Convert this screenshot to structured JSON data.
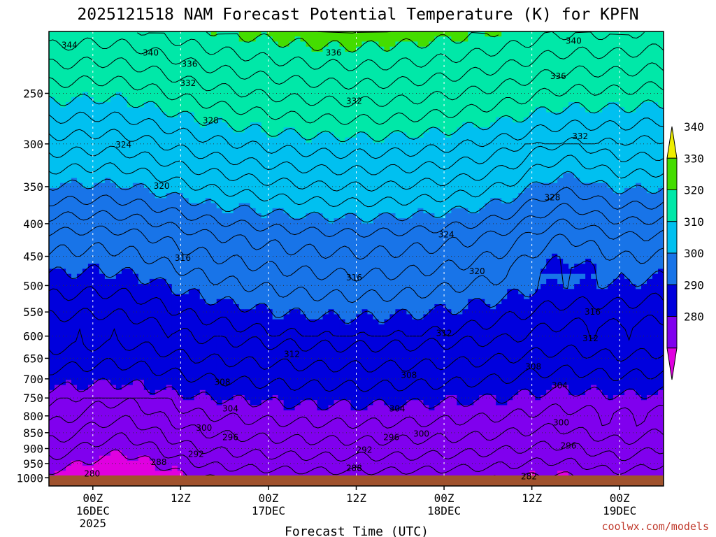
{
  "chart_data": {
    "type": "heatmap",
    "title": "2025121518 NAM Forecast Potential Temperature (K) for KPFN",
    "xlabel": "Forecast Time (UTC)",
    "ylabel": "",
    "y_ticks": [
      "250",
      "300",
      "350",
      "400",
      "450",
      "500",
      "550",
      "600",
      "650",
      "700",
      "750",
      "800",
      "850",
      "900",
      "950",
      "1000"
    ],
    "y_axis_scale": "log-pressure (hPa), inverted",
    "y_range_hpa": [
      200,
      1030
    ],
    "x_ticks": [
      {
        "hour": 6,
        "line1": "00Z",
        "line2": "16DEC",
        "line3": "2025"
      },
      {
        "hour": 18,
        "line1": "12Z",
        "line2": "",
        "line3": ""
      },
      {
        "hour": 30,
        "line1": "00Z",
        "line2": "17DEC",
        "line3": ""
      },
      {
        "hour": 42,
        "line1": "12Z",
        "line2": "",
        "line3": ""
      },
      {
        "hour": 54,
        "line1": "00Z",
        "line2": "18DEC",
        "line3": ""
      },
      {
        "hour": 66,
        "line1": "12Z",
        "line2": "",
        "line3": ""
      },
      {
        "hour": 78,
        "line1": "00Z",
        "line2": "19DEC",
        "line3": ""
      }
    ],
    "x_range_hours": [
      0,
      84
    ],
    "colorbar": {
      "ticks": [
        "280",
        "290",
        "300",
        "310",
        "320",
        "330",
        "340"
      ],
      "bands": [
        {
          "min": 270,
          "max": 280,
          "color": "#e000e0"
        },
        {
          "min": 280,
          "max": 290,
          "color": "#8000ee"
        },
        {
          "min": 290,
          "max": 300,
          "color": "#0000dd"
        },
        {
          "min": 300,
          "max": 310,
          "color": "#1874e8"
        },
        {
          "min": 310,
          "max": 320,
          "color": "#00c0f0"
        },
        {
          "min": 320,
          "max": 330,
          "color": "#00e8a8"
        },
        {
          "min": 330,
          "max": 340,
          "color": "#44dd00"
        },
        {
          "min": 340,
          "max": 350,
          "color": "#eeee00"
        }
      ]
    },
    "contour_interval_k": 2,
    "contour_labels": [
      {
        "text": "344",
        "hour": 2.8,
        "p": 210
      },
      {
        "text": "340",
        "hour": 13.9,
        "p": 216
      },
      {
        "text": "336",
        "hour": 19.2,
        "p": 225
      },
      {
        "text": "332",
        "hour": 19.0,
        "p": 241
      },
      {
        "text": "328",
        "hour": 22.1,
        "p": 276
      },
      {
        "text": "324",
        "hour": 10.2,
        "p": 301
      },
      {
        "text": "320",
        "hour": 15.4,
        "p": 349
      },
      {
        "text": "316",
        "hour": 18.3,
        "p": 453
      },
      {
        "text": "312",
        "hour": 33.2,
        "p": 640
      },
      {
        "text": "308",
        "hour": 23.7,
        "p": 708
      },
      {
        "text": "304",
        "hour": 24.8,
        "p": 780
      },
      {
        "text": "300",
        "hour": 21.2,
        "p": 836
      },
      {
        "text": "296",
        "hour": 24.8,
        "p": 864
      },
      {
        "text": "292",
        "hour": 20.1,
        "p": 918
      },
      {
        "text": "288",
        "hour": 15.0,
        "p": 945
      },
      {
        "text": "280",
        "hour": 5.9,
        "p": 985
      },
      {
        "text": "336",
        "hour": 38.9,
        "p": 216
      },
      {
        "text": "332",
        "hour": 41.7,
        "p": 257
      },
      {
        "text": "316",
        "hour": 41.7,
        "p": 486
      },
      {
        "text": "312",
        "hour": 54.0,
        "p": 594
      },
      {
        "text": "308",
        "hour": 49.2,
        "p": 691
      },
      {
        "text": "304",
        "hour": 47.6,
        "p": 780
      },
      {
        "text": "296",
        "hour": 46.8,
        "p": 864
      },
      {
        "text": "300",
        "hour": 50.9,
        "p": 854
      },
      {
        "text": "292",
        "hour": 43.1,
        "p": 905
      },
      {
        "text": "288",
        "hour": 41.7,
        "p": 966
      },
      {
        "text": "324",
        "hour": 54.3,
        "p": 416
      },
      {
        "text": "320",
        "hour": 58.5,
        "p": 475
      },
      {
        "text": "340",
        "hour": 71.7,
        "p": 207
      },
      {
        "text": "336",
        "hour": 69.6,
        "p": 235
      },
      {
        "text": "332",
        "hour": 72.6,
        "p": 292
      },
      {
        "text": "328",
        "hour": 68.8,
        "p": 364
      },
      {
        "text": "316",
        "hour": 74.3,
        "p": 550
      },
      {
        "text": "312",
        "hour": 74.0,
        "p": 605
      },
      {
        "text": "308",
        "hour": 66.2,
        "p": 670
      },
      {
        "text": "304",
        "hour": 69.8,
        "p": 717
      },
      {
        "text": "300",
        "hour": 70.0,
        "p": 820
      },
      {
        "text": "296",
        "hour": 71.0,
        "p": 891
      },
      {
        "text": "282",
        "hour": 65.6,
        "p": 995
      }
    ],
    "ground_color": "#a0522d"
  },
  "credit": "coolwx.com/models"
}
